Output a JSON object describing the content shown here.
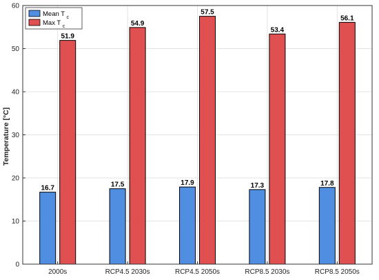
{
  "chart_data": {
    "type": "bar",
    "categories": [
      "2000s",
      "RCP4.5 2030s",
      "RCP4.5 2050s",
      "RCP8.5 2030s",
      "RCP8.5 2050s"
    ],
    "series": [
      {
        "name": "Mean T",
        "subscript": "c",
        "values": [
          16.7,
          17.5,
          17.9,
          17.3,
          17.8
        ],
        "color": "#4f8ee0"
      },
      {
        "name": "Max T",
        "subscript": "c",
        "values": [
          51.9,
          54.9,
          57.5,
          53.4,
          56.1
        ],
        "color": "#e05050"
      }
    ],
    "data_labels": {
      "mean": [
        "16.7",
        "17.5",
        "17.9",
        "17.3",
        "17.8"
      ],
      "max": [
        "51.9",
        "54.9",
        "57.5",
        "53.4",
        "56.1"
      ]
    },
    "ylabel": "Temperature [°C]",
    "ylim": [
      0,
      60
    ],
    "yticks": [
      "0",
      "10",
      "20",
      "30",
      "40",
      "50",
      "60"
    ],
    "grid": true,
    "legend_position": "top-left"
  }
}
